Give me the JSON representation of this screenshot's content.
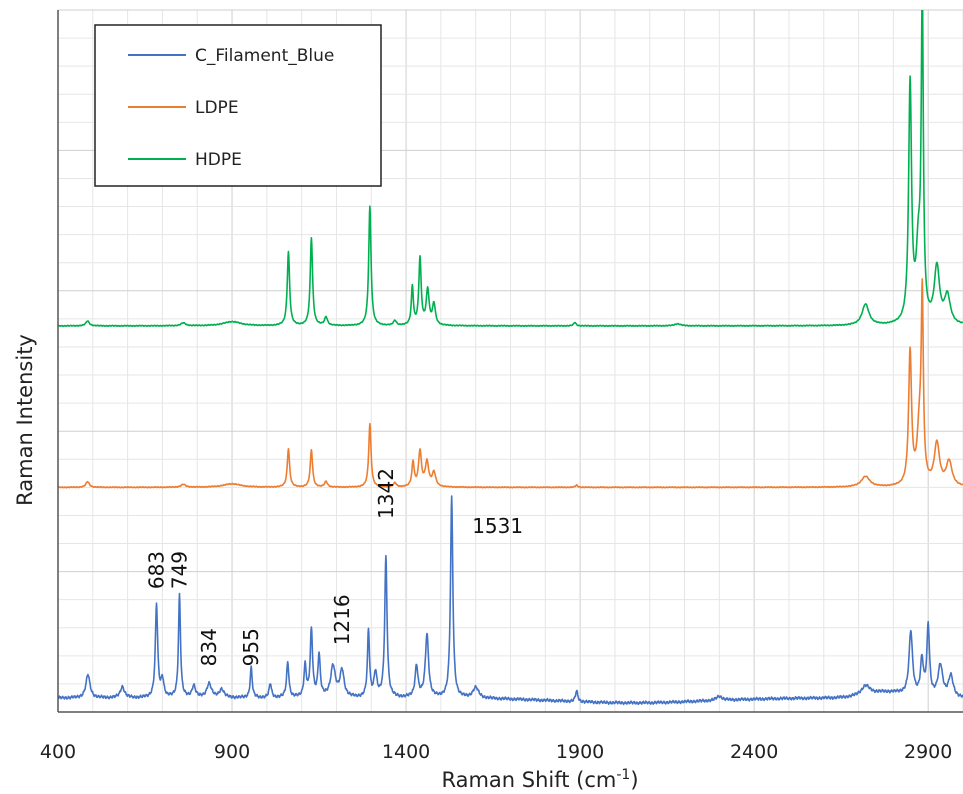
{
  "chart_data": {
    "type": "line",
    "title": "",
    "xlabel": "Raman Shift (cm",
    "xlabel_sup": "-1",
    "xlabel_tail": ")",
    "ylabel": "Raman Intensity",
    "xlim": [
      400,
      3000
    ],
    "ylim": [
      0,
      100
    ],
    "x_ticks": [
      400,
      900,
      1400,
      1900,
      2400,
      2900
    ],
    "x_tick_labels": [
      "400",
      "900",
      "1400",
      "1900",
      "2400",
      "2900"
    ],
    "grid": true,
    "legend_position": "top-left",
    "series": [
      {
        "name": "C_Filament_Blue",
        "color": "#4472c4",
        "baseline": 2,
        "noise": 0.25,
        "peaks": [
          [
            486,
            3.3,
            7
          ],
          [
            585,
            1.6,
            7
          ],
          [
            683,
            13.2,
            4
          ],
          [
            700,
            2.5,
            5
          ],
          [
            749,
            14.6,
            3.5
          ],
          [
            790,
            1.7,
            6
          ],
          [
            834,
            2.0,
            8
          ],
          [
            870,
            1.2,
            8
          ],
          [
            955,
            4.3,
            3.5
          ],
          [
            1010,
            2.0,
            4
          ],
          [
            1060,
            5.0,
            4
          ],
          [
            1110,
            4.5,
            4
          ],
          [
            1128,
            9.5,
            4
          ],
          [
            1150,
            6.0,
            4
          ],
          [
            1190,
            4.5,
            8
          ],
          [
            1216,
            3.8,
            7
          ],
          [
            1292,
            9.5,
            3.5
          ],
          [
            1312,
            3.5,
            5
          ],
          [
            1342,
            20.0,
            4
          ],
          [
            1430,
            4.5,
            5
          ],
          [
            1460,
            9.0,
            5.5
          ],
          [
            1531,
            28.5,
            4
          ],
          [
            1600,
            1.5,
            10
          ],
          [
            1890,
            1.5,
            4
          ],
          [
            2300,
            0.6,
            10
          ],
          [
            2720,
            1.3,
            15
          ],
          [
            2850,
            9.0,
            6
          ],
          [
            2882,
            5.0,
            5
          ],
          [
            2900,
            10.0,
            4.5
          ],
          [
            2935,
            4.5,
            8
          ],
          [
            2965,
            3.0,
            8
          ]
        ]
      },
      {
        "name": "LDPE",
        "color": "#ed7d31",
        "baseline": 32,
        "noise": 0.08,
        "peaks": [
          [
            485,
            0.8,
            6
          ],
          [
            760,
            0.4,
            8
          ],
          [
            900,
            0.5,
            30
          ],
          [
            1062,
            5.5,
            4
          ],
          [
            1128,
            5.3,
            4
          ],
          [
            1170,
            0.8,
            5
          ],
          [
            1296,
            9.0,
            4
          ],
          [
            1368,
            0.6,
            5
          ],
          [
            1420,
            3.5,
            4
          ],
          [
            1440,
            5.0,
            5
          ],
          [
            1460,
            3.5,
            6
          ],
          [
            1480,
            2.0,
            6
          ],
          [
            1890,
            0.3,
            4
          ],
          [
            2720,
            1.5,
            15
          ],
          [
            2848,
            19.0,
            5
          ],
          [
            2875,
            8.0,
            8
          ],
          [
            2883,
            25.0,
            3.5
          ],
          [
            2925,
            6.0,
            9
          ],
          [
            2960,
            3.5,
            10
          ]
        ]
      },
      {
        "name": "HDPE",
        "color": "#00b050",
        "baseline": 55,
        "noise": 0.08,
        "peaks": [
          [
            485,
            0.7,
            6
          ],
          [
            760,
            0.4,
            8
          ],
          [
            900,
            0.6,
            30
          ],
          [
            1062,
            10.5,
            4
          ],
          [
            1128,
            12.5,
            4
          ],
          [
            1170,
            1.2,
            5
          ],
          [
            1296,
            17.0,
            4
          ],
          [
            1368,
            0.7,
            5
          ],
          [
            1418,
            5.5,
            3.5
          ],
          [
            1440,
            9.5,
            4
          ],
          [
            1462,
            5.0,
            5
          ],
          [
            1480,
            3.0,
            5
          ],
          [
            1885,
            0.5,
            4
          ],
          [
            2180,
            0.3,
            10
          ],
          [
            2720,
            3.0,
            12
          ],
          [
            2848,
            34.0,
            5
          ],
          [
            2872,
            10.0,
            8
          ],
          [
            2883,
            45.0,
            3.5
          ],
          [
            2925,
            8.0,
            9
          ],
          [
            2955,
            4.0,
            10
          ]
        ]
      }
    ],
    "annotations": [
      {
        "text": "683",
        "x": 683,
        "y": 17.5,
        "rotate": true
      },
      {
        "text": "749",
        "x": 749,
        "y": 17.5,
        "rotate": true
      },
      {
        "text": "834",
        "x": 834,
        "y": 6.5,
        "rotate": true
      },
      {
        "text": "955",
        "x": 955,
        "y": 6.5,
        "rotate": true
      },
      {
        "text": "1216",
        "x": 1216,
        "y": 9.5,
        "rotate": true
      },
      {
        "text": "1342",
        "x": 1342,
        "y": 27.5,
        "rotate": true
      },
      {
        "text": "1531",
        "x": 1590,
        "y": 25.5,
        "rotate": false
      }
    ]
  }
}
